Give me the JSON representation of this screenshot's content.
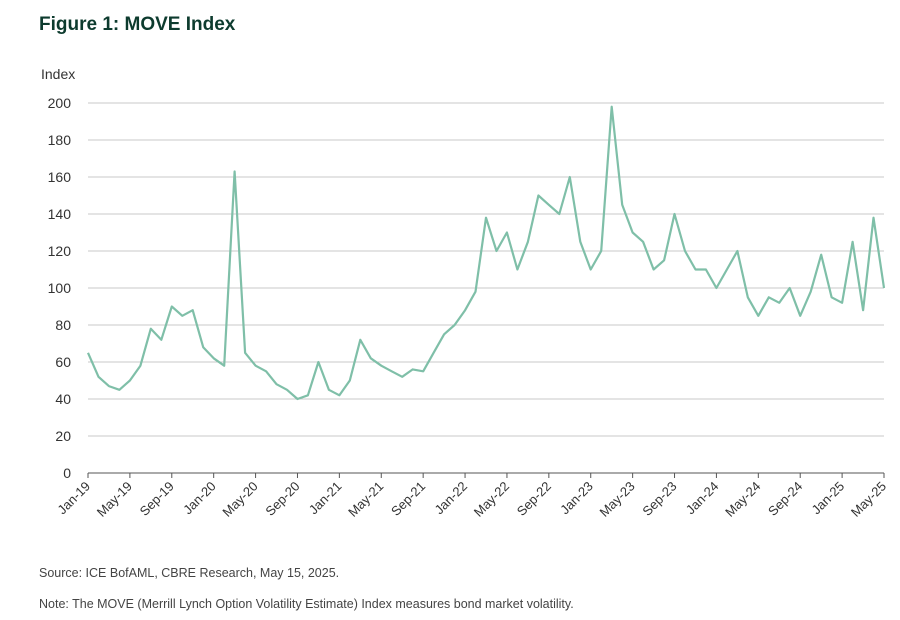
{
  "figure": {
    "title": "Figure 1: MOVE Index",
    "source": "Source: ICE BofAML, CBRE Research, May 15, 2025.",
    "note": "Note: The MOVE (Merrill Lynch Option Volatility Estimate) Index measures bond market volatility."
  },
  "colors": {
    "line": "#7fbfa8",
    "grid": "#c8c8c8",
    "axis": "#555555"
  },
  "chart_data": {
    "type": "line",
    "title": "",
    "xlabel": "",
    "ylabel": "Index",
    "ylim": [
      0,
      200
    ],
    "yticks": [
      0,
      20,
      40,
      60,
      80,
      100,
      120,
      140,
      160,
      180,
      200
    ],
    "xlim": [
      "2019-01",
      "2025-05"
    ],
    "xtick_labels": [
      "Jan-19",
      "May-19",
      "Sep-19",
      "Jan-20",
      "May-20",
      "Sep-20",
      "Jan-21",
      "May-21",
      "Sep-21",
      "Jan-22",
      "May-22",
      "Sep-22",
      "Jan-23",
      "May-23",
      "Sep-23",
      "Jan-24",
      "May-24",
      "Sep-24",
      "Jan-25",
      "May-25"
    ],
    "grid": true,
    "series": [
      {
        "x": [
          "2019-01",
          "2019-02",
          "2019-03",
          "2019-04",
          "2019-05",
          "2019-06",
          "2019-07",
          "2019-08",
          "2019-09",
          "2019-10",
          "2019-11",
          "2019-12",
          "2020-01",
          "2020-02",
          "2020-03",
          "2020-04",
          "2020-05",
          "2020-06",
          "2020-07",
          "2020-08",
          "2020-09",
          "2020-10",
          "2020-11",
          "2020-12",
          "2021-01",
          "2021-02",
          "2021-03",
          "2021-04",
          "2021-05",
          "2021-06",
          "2021-07",
          "2021-08",
          "2021-09",
          "2021-10",
          "2021-11",
          "2021-12",
          "2022-01",
          "2022-02",
          "2022-03",
          "2022-04",
          "2022-05",
          "2022-06",
          "2022-07",
          "2022-08",
          "2022-09",
          "2022-10",
          "2022-11",
          "2022-12",
          "2023-01",
          "2023-02",
          "2023-03",
          "2023-04",
          "2023-05",
          "2023-06",
          "2023-07",
          "2023-08",
          "2023-09",
          "2023-10",
          "2023-11",
          "2023-12",
          "2024-01",
          "2024-02",
          "2024-03",
          "2024-04",
          "2024-05",
          "2024-06",
          "2024-07",
          "2024-08",
          "2024-09",
          "2024-10",
          "2024-11",
          "2024-12",
          "2025-01",
          "2025-02",
          "2025-03",
          "2025-04",
          "2025-05"
        ],
        "y": [
          65,
          52,
          47,
          45,
          50,
          58,
          78,
          72,
          90,
          85,
          88,
          68,
          62,
          58,
          163,
          65,
          58,
          55,
          48,
          45,
          40,
          42,
          60,
          45,
          42,
          50,
          72,
          62,
          58,
          55,
          52,
          56,
          55,
          65,
          75,
          80,
          88,
          98,
          138,
          120,
          130,
          110,
          125,
          150,
          145,
          140,
          160,
          125,
          110,
          120,
          198,
          145,
          130,
          125,
          110,
          115,
          140,
          120,
          110,
          110,
          100,
          110,
          120,
          95,
          85,
          95,
          92,
          100,
          85,
          98,
          118,
          95,
          92,
          125,
          88,
          138,
          100
        ]
      }
    ]
  }
}
